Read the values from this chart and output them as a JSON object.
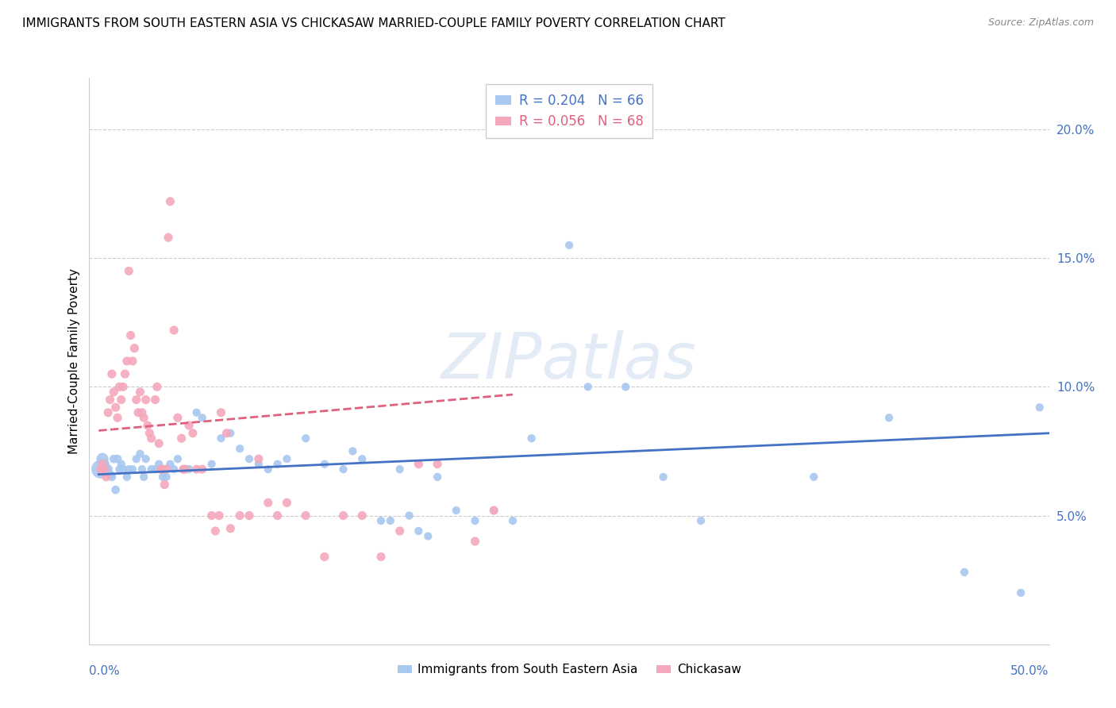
{
  "title": "IMMIGRANTS FROM SOUTH EASTERN ASIA VS CHICKASAW MARRIED-COUPLE FAMILY POVERTY CORRELATION CHART",
  "source": "Source: ZipAtlas.com",
  "ylabel": "Married-Couple Family Poverty",
  "legend_blue_label": "Immigrants from South Eastern Asia",
  "legend_pink_label": "Chickasaw",
  "blue_color": "#a8c8f0",
  "pink_color": "#f4a8bc",
  "blue_line_color": "#4472c4",
  "pink_line_color": "#e06080",
  "watermark": "ZIPatlas",
  "blue_dots": [
    [
      0.001,
      0.068
    ],
    [
      0.002,
      0.072
    ],
    [
      0.003,
      0.07
    ],
    [
      0.004,
      0.068
    ],
    [
      0.005,
      0.068
    ],
    [
      0.006,
      0.066
    ],
    [
      0.007,
      0.065
    ],
    [
      0.008,
      0.072
    ],
    [
      0.009,
      0.06
    ],
    [
      0.01,
      0.072
    ],
    [
      0.011,
      0.068
    ],
    [
      0.012,
      0.07
    ],
    [
      0.013,
      0.068
    ],
    [
      0.015,
      0.065
    ],
    [
      0.016,
      0.068
    ],
    [
      0.018,
      0.068
    ],
    [
      0.02,
      0.072
    ],
    [
      0.022,
      0.074
    ],
    [
      0.023,
      0.068
    ],
    [
      0.024,
      0.065
    ],
    [
      0.025,
      0.072
    ],
    [
      0.028,
      0.068
    ],
    [
      0.03,
      0.068
    ],
    [
      0.032,
      0.07
    ],
    [
      0.034,
      0.065
    ],
    [
      0.036,
      0.065
    ],
    [
      0.038,
      0.07
    ],
    [
      0.04,
      0.068
    ],
    [
      0.042,
      0.072
    ],
    [
      0.045,
      0.068
    ],
    [
      0.048,
      0.068
    ],
    [
      0.052,
      0.09
    ],
    [
      0.055,
      0.088
    ],
    [
      0.06,
      0.07
    ],
    [
      0.065,
      0.08
    ],
    [
      0.07,
      0.082
    ],
    [
      0.075,
      0.076
    ],
    [
      0.08,
      0.072
    ],
    [
      0.085,
      0.07
    ],
    [
      0.09,
      0.068
    ],
    [
      0.095,
      0.07
    ],
    [
      0.1,
      0.072
    ],
    [
      0.11,
      0.08
    ],
    [
      0.12,
      0.07
    ],
    [
      0.13,
      0.068
    ],
    [
      0.135,
      0.075
    ],
    [
      0.14,
      0.072
    ],
    [
      0.15,
      0.048
    ],
    [
      0.155,
      0.048
    ],
    [
      0.16,
      0.068
    ],
    [
      0.165,
      0.05
    ],
    [
      0.17,
      0.044
    ],
    [
      0.175,
      0.042
    ],
    [
      0.18,
      0.065
    ],
    [
      0.19,
      0.052
    ],
    [
      0.2,
      0.048
    ],
    [
      0.21,
      0.052
    ],
    [
      0.22,
      0.048
    ],
    [
      0.23,
      0.08
    ],
    [
      0.25,
      0.155
    ],
    [
      0.26,
      0.1
    ],
    [
      0.28,
      0.1
    ],
    [
      0.3,
      0.065
    ],
    [
      0.32,
      0.048
    ],
    [
      0.38,
      0.065
    ],
    [
      0.42,
      0.088
    ],
    [
      0.46,
      0.028
    ],
    [
      0.49,
      0.02
    ],
    [
      0.5,
      0.092
    ]
  ],
  "blue_dot_sizes": [
    280,
    120,
    90,
    75,
    70,
    65,
    60,
    60,
    60,
    60,
    55,
    55,
    55,
    55,
    55,
    55,
    55,
    55,
    55,
    55,
    55,
    55,
    55,
    55,
    55,
    55,
    55,
    55,
    55,
    55,
    55,
    55,
    55,
    55,
    55,
    55,
    55,
    55,
    55,
    55,
    55,
    55,
    55,
    55,
    55,
    55,
    55,
    55,
    55,
    55,
    55,
    55,
    55,
    55,
    55,
    55,
    55,
    55,
    55,
    55,
    55,
    55,
    55,
    55,
    55,
    55,
    55,
    55,
    55
  ],
  "pink_dots": [
    [
      0.001,
      0.068
    ],
    [
      0.002,
      0.07
    ],
    [
      0.003,
      0.068
    ],
    [
      0.004,
      0.065
    ],
    [
      0.005,
      0.09
    ],
    [
      0.006,
      0.095
    ],
    [
      0.007,
      0.105
    ],
    [
      0.008,
      0.098
    ],
    [
      0.009,
      0.092
    ],
    [
      0.01,
      0.088
    ],
    [
      0.011,
      0.1
    ],
    [
      0.012,
      0.095
    ],
    [
      0.013,
      0.1
    ],
    [
      0.014,
      0.105
    ],
    [
      0.015,
      0.11
    ],
    [
      0.016,
      0.145
    ],
    [
      0.017,
      0.12
    ],
    [
      0.018,
      0.11
    ],
    [
      0.019,
      0.115
    ],
    [
      0.02,
      0.095
    ],
    [
      0.021,
      0.09
    ],
    [
      0.022,
      0.098
    ],
    [
      0.023,
      0.09
    ],
    [
      0.024,
      0.088
    ],
    [
      0.025,
      0.095
    ],
    [
      0.026,
      0.085
    ],
    [
      0.027,
      0.082
    ],
    [
      0.028,
      0.08
    ],
    [
      0.03,
      0.095
    ],
    [
      0.031,
      0.1
    ],
    [
      0.032,
      0.078
    ],
    [
      0.033,
      0.068
    ],
    [
      0.034,
      0.068
    ],
    [
      0.035,
      0.062
    ],
    [
      0.036,
      0.068
    ],
    [
      0.037,
      0.158
    ],
    [
      0.038,
      0.172
    ],
    [
      0.04,
      0.122
    ],
    [
      0.042,
      0.088
    ],
    [
      0.044,
      0.08
    ],
    [
      0.045,
      0.068
    ],
    [
      0.046,
      0.068
    ],
    [
      0.048,
      0.085
    ],
    [
      0.05,
      0.082
    ],
    [
      0.052,
      0.068
    ],
    [
      0.055,
      0.068
    ],
    [
      0.06,
      0.05
    ],
    [
      0.062,
      0.044
    ],
    [
      0.064,
      0.05
    ],
    [
      0.065,
      0.09
    ],
    [
      0.068,
      0.082
    ],
    [
      0.07,
      0.045
    ],
    [
      0.075,
      0.05
    ],
    [
      0.08,
      0.05
    ],
    [
      0.085,
      0.072
    ],
    [
      0.09,
      0.055
    ],
    [
      0.095,
      0.05
    ],
    [
      0.1,
      0.055
    ],
    [
      0.11,
      0.05
    ],
    [
      0.12,
      0.034
    ],
    [
      0.13,
      0.05
    ],
    [
      0.14,
      0.05
    ],
    [
      0.15,
      0.034
    ],
    [
      0.16,
      0.044
    ],
    [
      0.17,
      0.07
    ],
    [
      0.18,
      0.07
    ],
    [
      0.2,
      0.04
    ],
    [
      0.21,
      0.052
    ]
  ],
  "pink_dot_sizes": [
    65,
    65,
    65,
    65,
    65,
    65,
    65,
    65,
    65,
    65,
    65,
    65,
    65,
    65,
    65,
    65,
    65,
    65,
    65,
    65,
    65,
    65,
    65,
    65,
    65,
    65,
    65,
    65,
    65,
    65,
    65,
    65,
    65,
    65,
    65,
    65,
    65,
    65,
    65,
    65,
    65,
    65,
    65,
    65,
    65,
    65,
    65,
    65,
    65,
    65,
    65,
    65,
    65,
    65,
    65,
    65,
    65,
    65,
    65,
    65,
    65,
    65,
    65,
    65,
    65,
    65,
    65,
    65
  ],
  "xlim": [
    -0.005,
    0.505
  ],
  "ylim": [
    0.0,
    0.22
  ],
  "ytick_positions": [
    0.05,
    0.1,
    0.15,
    0.2
  ],
  "ytick_labels": [
    "5.0%",
    "10.0%",
    "15.0%",
    "20.0%"
  ],
  "blue_line_x": [
    0.0,
    0.505
  ],
  "blue_line_y": [
    0.066,
    0.082
  ],
  "pink_line_x": [
    0.0,
    0.22
  ],
  "pink_line_y": [
    0.083,
    0.097
  ]
}
